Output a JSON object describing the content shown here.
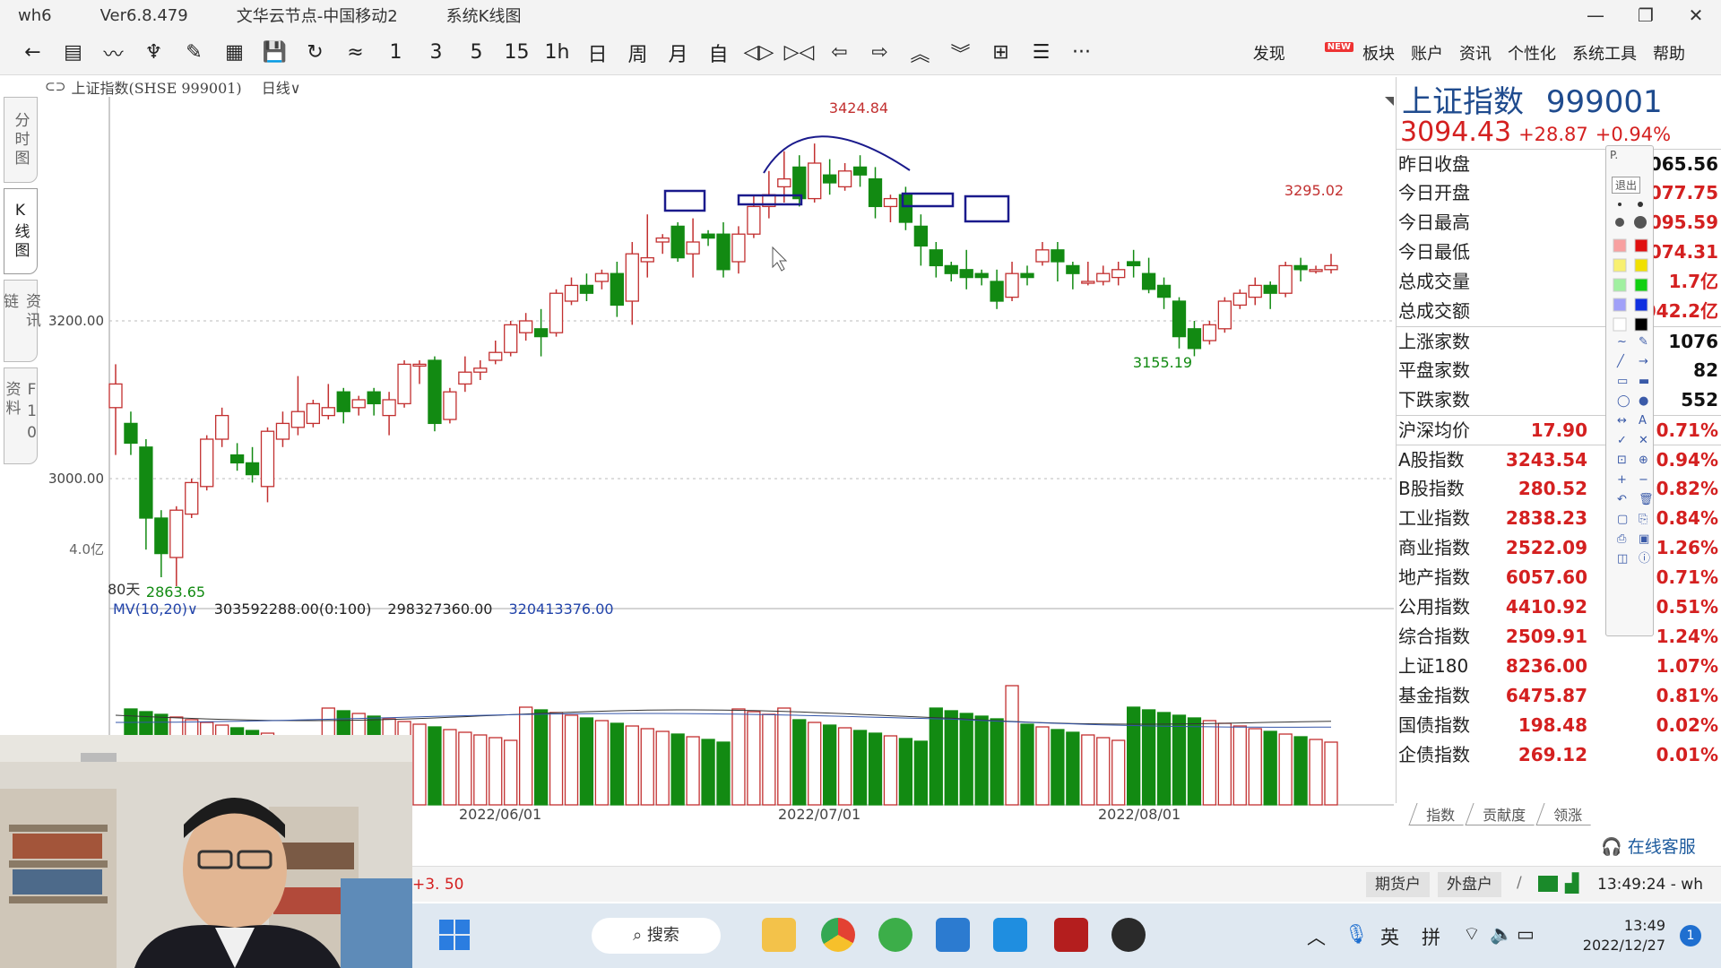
{
  "window": {
    "app": "wh6",
    "version": "Ver6.8.479",
    "server": "文华云节点-中国移动2",
    "view": "系统K线图"
  },
  "toolbar": {
    "icons": [
      "back-icon",
      "list-icon",
      "trend-icon",
      "kline-icon",
      "draw-icon",
      "grid-icon",
      "save-icon",
      "refresh-icon",
      "compare-icon"
    ],
    "periods": [
      "1",
      "3",
      "5",
      "15",
      "1h",
      "日",
      "周",
      "月",
      "自"
    ],
    "nav_icons": [
      "expand-icon",
      "shrink-icon",
      "left-icon",
      "right-icon",
      "up-icon",
      "down-icon",
      "layout-icon",
      "text-icon",
      "more-icon"
    ],
    "menu": [
      "发现",
      "板块",
      "账户",
      "资讯",
      "个性化",
      "系统工具",
      "帮助"
    ],
    "new_badge": "NEW"
  },
  "chart_header": {
    "title": "上证指数(SHSE 999001)",
    "period": "日线"
  },
  "left_tabs": [
    "分时图",
    "K线图",
    "资讯链",
    "F10资料"
  ],
  "chart": {
    "price_labels": [
      "3200.00",
      "3000.00"
    ],
    "vol_label": "4.0亿",
    "high_label": "3424.84",
    "recent_high": "3295.02",
    "low_label": "3155.19",
    "bottom_low": "2863.65",
    "range": "80天",
    "mv": {
      "label": "MV(10,20)",
      "v1": "303592288.00(0:100)",
      "v2": "298327360.00",
      "v3": "320413376.00"
    },
    "dates": [
      "2022/06/01",
      "2022/07/01",
      "2022/08/01"
    ],
    "colors": {
      "up": "#c23030",
      "down": "#128a12",
      "annot": "#1a1a8c"
    }
  },
  "chart_data": {
    "type": "candlestick",
    "title": "上证指数(SHSE 999001)",
    "annotations": {
      "high": 3424.84,
      "recent_high": 3295.02,
      "low": 3155.19,
      "bottom": 2863.65
    },
    "y_ticks": [
      3000,
      3200
    ],
    "candles": [
      [
        3090,
        3120,
        3030,
        3145
      ],
      [
        3070,
        3045,
        3030,
        3085
      ],
      [
        3040,
        2950,
        2910,
        3050
      ],
      [
        2950,
        2905,
        2875,
        2960
      ],
      [
        2900,
        2960,
        2863.65,
        2965
      ],
      [
        2955,
        2995,
        2950,
        3000
      ],
      [
        2990,
        3050,
        2985,
        3055
      ],
      [
        3050,
        3080,
        3040,
        3090
      ],
      [
        3030,
        3020,
        3010,
        3045
      ],
      [
        3020,
        3005,
        2995,
        3040
      ],
      [
        2990,
        3060,
        2970,
        3065
      ],
      [
        3050,
        3070,
        3040,
        3085
      ],
      [
        3065,
        3085,
        3055,
        3130
      ],
      [
        3070,
        3095,
        3065,
        3100
      ],
      [
        3080,
        3090,
        3075,
        3120
      ],
      [
        3110,
        3085,
        3070,
        3115
      ],
      [
        3090,
        3100,
        3080,
        3105
      ],
      [
        3110,
        3095,
        3080,
        3115
      ],
      [
        3080,
        3100,
        3055,
        3110
      ],
      [
        3095,
        3145,
        3090,
        3150
      ],
      [
        3145,
        3145,
        3120,
        3150
      ],
      [
        3150,
        3070,
        3060,
        3155
      ],
      [
        3075,
        3110,
        3070,
        3115
      ],
      [
        3120,
        3135,
        3110,
        3155
      ],
      [
        3135,
        3140,
        3125,
        3150
      ],
      [
        3150,
        3160,
        3145,
        3175
      ],
      [
        3160,
        3195,
        3155,
        3200
      ],
      [
        3185,
        3200,
        3175,
        3210
      ],
      [
        3190,
        3180,
        3155,
        3215
      ],
      [
        3185,
        3235,
        3180,
        3240
      ],
      [
        3225,
        3245,
        3220,
        3255
      ],
      [
        3245,
        3235,
        3225,
        3260
      ],
      [
        3250,
        3260,
        3240,
        3265
      ],
      [
        3260,
        3220,
        3205,
        3275
      ],
      [
        3225,
        3285,
        3195,
        3300
      ],
      [
        3275,
        3280,
        3255,
        3335
      ],
      [
        3300,
        3305,
        3285,
        3310
      ],
      [
        3320,
        3280,
        3275,
        3325
      ],
      [
        3285,
        3300,
        3255,
        3330
      ],
      [
        3310,
        3305,
        3295,
        3315
      ],
      [
        3310,
        3265,
        3255,
        3325
      ],
      [
        3275,
        3310,
        3260,
        3320
      ],
      [
        3310,
        3345,
        3305,
        3360
      ],
      [
        3345,
        3360,
        3330,
        3390
      ],
      [
        3370,
        3380,
        3350,
        3415
      ],
      [
        3395,
        3355,
        3345,
        3410
      ],
      [
        3355,
        3400,
        3350,
        3424.84
      ],
      [
        3385,
        3375,
        3360,
        3405
      ],
      [
        3370,
        3390,
        3365,
        3400
      ],
      [
        3395,
        3385,
        3370,
        3410
      ],
      [
        3380,
        3345,
        3330,
        3395
      ],
      [
        3345,
        3355,
        3325,
        3360
      ],
      [
        3360,
        3325,
        3315,
        3370
      ],
      [
        3320,
        3295,
        3270,
        3335
      ],
      [
        3290,
        3270,
        3255,
        3300
      ],
      [
        3270,
        3260,
        3250,
        3275
      ],
      [
        3265,
        3255,
        3240,
        3290
      ],
      [
        3260,
        3255,
        3245,
        3265
      ],
      [
        3250,
        3225,
        3215,
        3265
      ],
      [
        3230,
        3260,
        3225,
        3275
      ],
      [
        3260,
        3255,
        3245,
        3270
      ],
      [
        3275,
        3290,
        3270,
        3300
      ],
      [
        3290,
        3275,
        3250,
        3300
      ],
      [
        3270,
        3260,
        3240,
        3275
      ],
      [
        3250,
        3250,
        3245,
        3275
      ],
      [
        3250,
        3260,
        3245,
        3270
      ],
      [
        3255,
        3265,
        3245,
        3275
      ],
      [
        3275,
        3270,
        3255,
        3290
      ],
      [
        3260,
        3240,
        3235,
        3280
      ],
      [
        3245,
        3230,
        3215,
        3255
      ],
      [
        3225,
        3180,
        3165,
        3230
      ],
      [
        3190,
        3165,
        3155.19,
        3200
      ],
      [
        3175,
        3195,
        3170,
        3200
      ],
      [
        3190,
        3225,
        3185,
        3230
      ],
      [
        3220,
        3235,
        3215,
        3240
      ],
      [
        3230,
        3245,
        3220,
        3255
      ],
      [
        3245,
        3235,
        3215,
        3250
      ],
      [
        3235,
        3270,
        3230,
        3275
      ],
      [
        3270,
        3265,
        3250,
        3280
      ],
      [
        3265,
        3265,
        3260,
        3270
      ],
      [
        3265,
        3270,
        3260,
        3285
      ]
    ],
    "volume_ticks": [
      "4.0亿"
    ]
  },
  "panel": {
    "name": "上证指数",
    "code": "999001",
    "price": "3094.43",
    "change": "+28.87",
    "pct": "+0.94%",
    "rows": [
      {
        "k": "昨日收盘",
        "v": "3065.56",
        "black": true
      },
      {
        "k": "今日开盘",
        "v": "3077.75"
      },
      {
        "k": "今日最高",
        "v": "3095.59"
      },
      {
        "k": "今日最低",
        "v": "3074.31"
      },
      {
        "k": "总成交量",
        "v": "1.7亿"
      },
      {
        "k": "总成交额",
        "v": "042.2亿"
      }
    ],
    "breadth": [
      {
        "k": "上涨家数",
        "v": "1076"
      },
      {
        "k": "平盘家数",
        "v": "82"
      },
      {
        "k": "下跌家数",
        "v": "552"
      }
    ],
    "avg": {
      "k": "沪深均价",
      "mid": "17.90",
      "v": "0.71%"
    },
    "indices": [
      {
        "k": "A股指数",
        "mid": "3243.54",
        "v": "0.94%"
      },
      {
        "k": "B股指数",
        "mid": "280.52",
        "v": "0.82%"
      },
      {
        "k": "工业指数",
        "mid": "2838.23",
        "v": "0.84%"
      },
      {
        "k": "商业指数",
        "mid": "2522.09",
        "v": "1.26%"
      },
      {
        "k": "地产指数",
        "mid": "6057.60",
        "v": "0.71%"
      },
      {
        "k": "公用指数",
        "mid": "4410.92",
        "v": "0.51%"
      },
      {
        "k": "综合指数",
        "mid": "2509.91",
        "v": "1.24%"
      },
      {
        "k": "上证180",
        "mid": "8236.00",
        "v": "1.07%"
      },
      {
        "k": "基金指数",
        "mid": "6475.87",
        "v": "0.81%"
      },
      {
        "k": "国债指数",
        "mid": "198.48",
        "v": "0.02%"
      },
      {
        "k": "企债指数",
        "mid": "269.12",
        "v": "0.01%"
      }
    ],
    "tabs": [
      "指数",
      "贡献度",
      "领涨"
    ]
  },
  "palette": {
    "exit": "退出",
    "pin": "P."
  },
  "status": {
    "left": "+3. 50",
    "service": "在线客服",
    "buttons": [
      "期货户",
      "外盘户"
    ],
    "clock": "13:49:24 - wh"
  },
  "taskbar": {
    "search": "搜索",
    "ime1": "英",
    "ime2": "拼",
    "time": "13:49",
    "date": "2022/12/27",
    "notif": "1"
  }
}
